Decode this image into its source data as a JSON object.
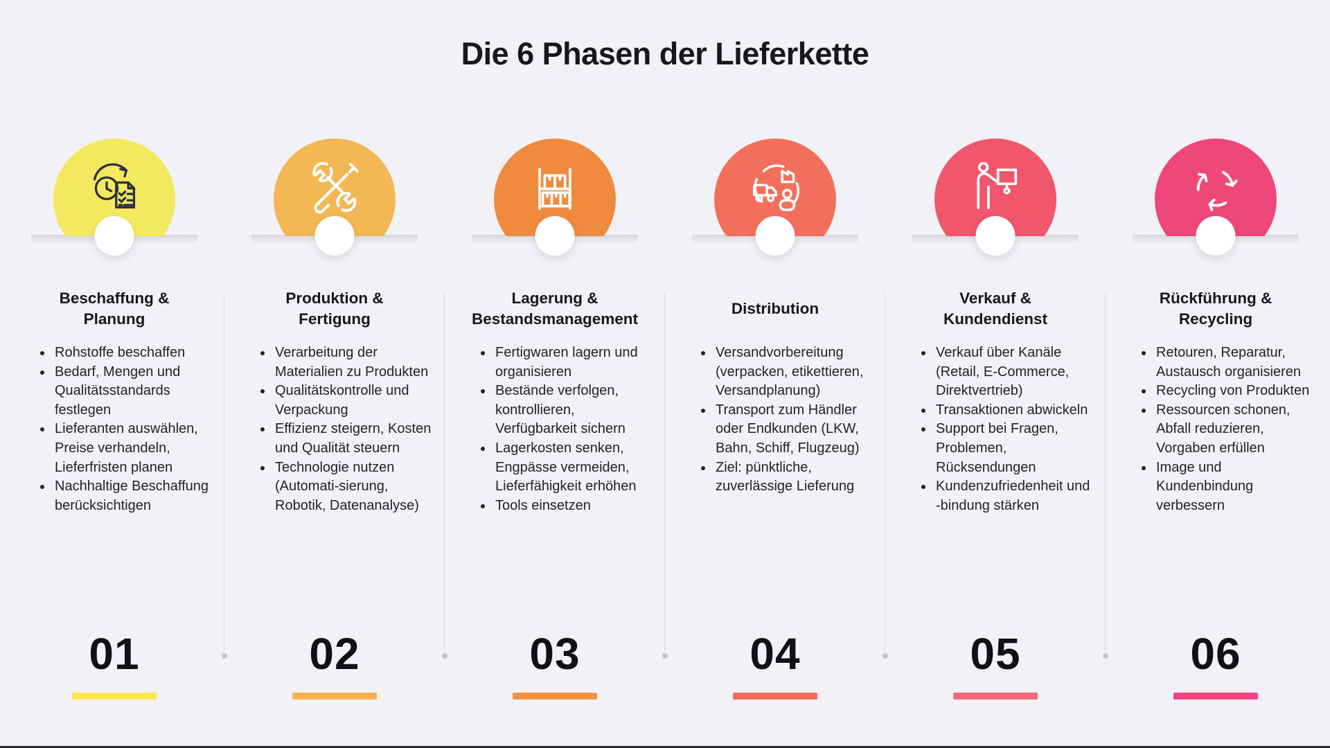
{
  "title": "Die 6 Phasen der Lieferkette",
  "theme": {
    "background": "#f2f1f6",
    "text_color": "#1b1b20",
    "divider_color": "#dbdae1"
  },
  "phases": [
    {
      "number": "01",
      "title": "Beschaffung &\nPlanung",
      "icon": "clock-checklist-icon",
      "circle_color": "#f2e95e",
      "bar_color": "#fbe74f",
      "icon_stroke": "#2e3140",
      "bullets": [
        "Rohstoffe beschaffen",
        "Bedarf, Mengen und Qualitätsstandards festlegen",
        "Lieferanten auswählen, Preise verhandeln, Lieferfristen planen",
        "Nachhaltige Beschaffung berücksichtigen"
      ]
    },
    {
      "number": "02",
      "title": "Produktion &\nFertigung",
      "icon": "tools-icon",
      "circle_color": "#f3b753",
      "bar_color": "#f5b44e",
      "icon_stroke": "#ffffff",
      "bullets": [
        "Verarbeitung der Materialien zu Produkten",
        "Qualitätskontrolle und Verpackung",
        "Effizienz steigern, Kosten und Qualität steuern",
        "Technologie nutzen (Automati-sierung, Robotik, Datenanalyse)"
      ]
    },
    {
      "number": "03",
      "title": "Lagerung &\nBestandsmanagement",
      "icon": "warehouse-shelf-icon",
      "circle_color": "#f08a3e",
      "bar_color": "#f5923f",
      "icon_stroke": "#ffffff",
      "bullets": [
        "Fertigwaren lagern und organisieren",
        "Bestände verfolgen, kontrollieren, Verfügbarkeit sichern",
        "Lagerkosten senken, Engpässe vermeiden, Lieferfähigkeit erhöhen",
        "Tools einsetzen"
      ]
    },
    {
      "number": "04",
      "title": "Distribution",
      "icon": "distribution-network-icon",
      "circle_color": "#f2705b",
      "bar_color": "#f26b5d",
      "icon_stroke": "#ffffff",
      "bullets": [
        "Versandvorbereitung (verpacken, etikettieren, Versandplanung)",
        "Transport zum Händler oder Endkunden (LKW, Bahn, Schiff, Flugzeug)",
        "Ziel: pünktliche, zuverlässige Lieferung"
      ]
    },
    {
      "number": "05",
      "title": "Verkauf &\nKundendienst",
      "icon": "presentation-icon",
      "circle_color": "#f0566c",
      "bar_color": "#f6697b",
      "icon_stroke": "#ffffff",
      "bullets": [
        "Verkauf über Kanäle (Retail, E-Commerce, Direktvertrieb)",
        "Transaktionen abwickeln",
        "Support bei Fragen, Problemen, Rücksendungen",
        "Kundenzufriedenheit und -bindung stärken"
      ]
    },
    {
      "number": "06",
      "title": "Rückführung &\nRecycling",
      "icon": "recycling-icon",
      "circle_color": "#ee477c",
      "bar_color": "#f4427e",
      "icon_stroke": "#ffffff",
      "bullets": [
        "Retouren, Reparatur, Austausch organisieren",
        "Recycling von Produkten",
        "Ressourcen schonen, Abfall reduzieren, Vorgaben erfüllen",
        "Image und Kundenbindung verbessern"
      ]
    }
  ]
}
